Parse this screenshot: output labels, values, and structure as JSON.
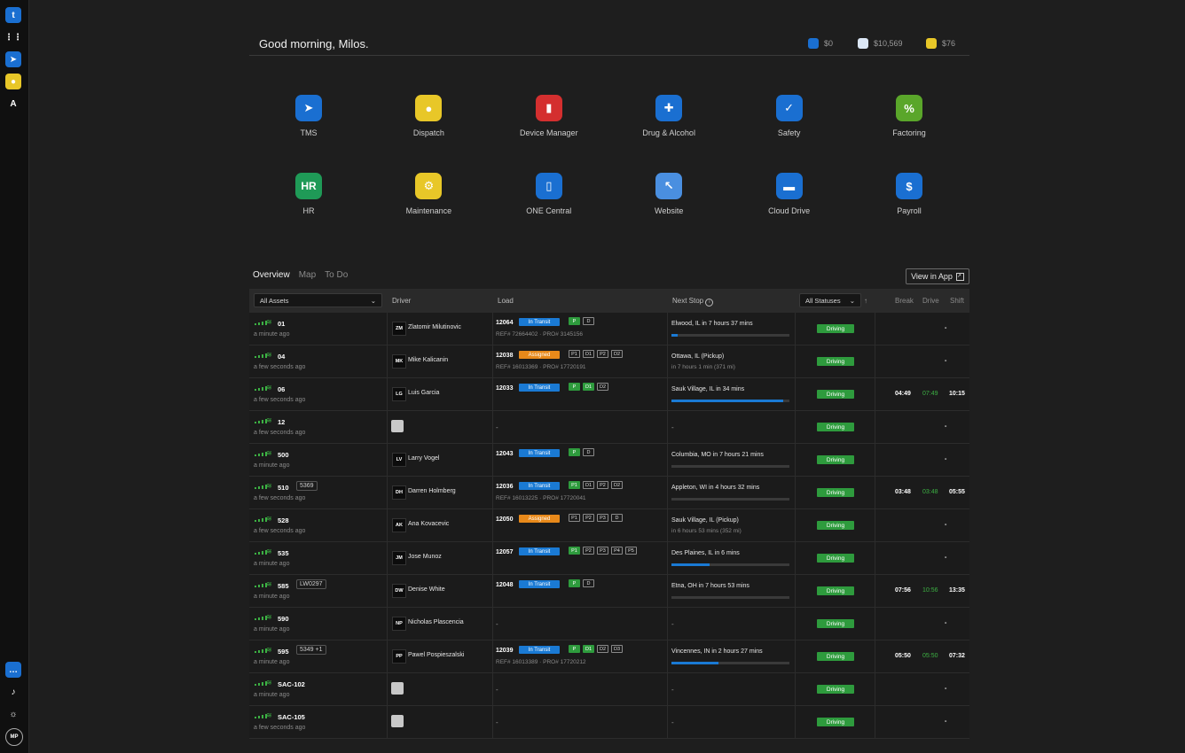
{
  "greeting": "Good morning, Milos.",
  "balances": [
    {
      "icon": "toll-icon",
      "value": "$0",
      "color": "#1a6fd1"
    },
    {
      "icon": "fuel-card-icon",
      "value": "$10,569",
      "color": "#dbe6f5"
    },
    {
      "icon": "wallet-icon",
      "value": "$76",
      "color": "#e8c728"
    }
  ],
  "apps": [
    {
      "label": "TMS",
      "icon": "paper-plane-icon",
      "color": "#1a6fd1",
      "glyph": "➤"
    },
    {
      "label": "Dispatch",
      "icon": "map-pin-icon",
      "color": "#e8c728",
      "glyph": "●"
    },
    {
      "label": "Device Manager",
      "icon": "signal-bars-icon",
      "color": "#d42f2f",
      "glyph": "▮"
    },
    {
      "label": "Drug & Alcohol",
      "icon": "pill-icon",
      "color": "#1a6fd1",
      "glyph": "✚"
    },
    {
      "label": "Safety",
      "icon": "shield-check-icon",
      "color": "#1a6fd1",
      "glyph": "✓"
    },
    {
      "label": "Factoring",
      "icon": "percent-icon",
      "color": "#5aa62a",
      "glyph": "%"
    },
    {
      "label": "HR",
      "icon": "hr-icon",
      "color": "#1f9a57",
      "glyph": "HR"
    },
    {
      "label": "Maintenance",
      "icon": "wrench-icon",
      "color": "#e8c728",
      "glyph": "⚙"
    },
    {
      "label": "ONE Central",
      "icon": "phone-icon",
      "color": "#1a6fd1",
      "glyph": "▯"
    },
    {
      "label": "Website",
      "icon": "browser-cursor-icon",
      "color": "#4a8fe0",
      "glyph": "↖"
    },
    {
      "label": "Cloud Drive",
      "icon": "folder-icon",
      "color": "#1a6fd1",
      "glyph": "▬"
    },
    {
      "label": "Payroll",
      "icon": "dollar-icon",
      "color": "#1a6fd1",
      "glyph": "$"
    }
  ],
  "tabs": [
    "Overview",
    "Map",
    "To Do"
  ],
  "view_in_app": "View in App",
  "table": {
    "assets_filter": "All Assets",
    "statuses_filter": "All Statuses",
    "headers": {
      "driver": "Driver",
      "load": "Load",
      "next_stop": "Next Stop",
      "break": "Break",
      "drive": "Drive",
      "shift": "Shift"
    },
    "rows": [
      {
        "asset": "01",
        "time": "a minute ago",
        "tag": "",
        "drv_init": "ZM",
        "driver": "Zlatomir Milutinovic",
        "load": "12064",
        "status": "In Transit",
        "stops": [
          [
            "P",
            1
          ],
          [
            "D",
            0
          ]
        ],
        "ref": "REF# 72664402 · PRO# 3145156",
        "next": "Elwood, IL in 7 hours 37 mins",
        "sub": "",
        "progress": 5,
        "state": "Driving",
        "brk": "",
        "drv": "",
        "shift": "-"
      },
      {
        "asset": "04",
        "time": "a few seconds ago",
        "tag": "",
        "drv_init": "MK",
        "driver": "Mike Kalicanin",
        "load": "12038",
        "status": "Assigned",
        "stops": [
          [
            "P1",
            0
          ],
          [
            "D1",
            0
          ],
          [
            "P2",
            0
          ],
          [
            "D2",
            0
          ]
        ],
        "ref": "REF# 16013369 · PRO# 17720191",
        "next": "Ottawa, IL (Pickup)",
        "sub": "in 7 hours 1 min (371 mi)",
        "progress": -1,
        "state": "Driving",
        "brk": "",
        "drv": "",
        "shift": "-"
      },
      {
        "asset": "06",
        "time": "a few seconds ago",
        "tag": "",
        "drv_init": "LG",
        "driver": "Luis Garcia",
        "load": "12033",
        "status": "In Transit",
        "stops": [
          [
            "P",
            1
          ],
          [
            "D1",
            1
          ],
          [
            "D2",
            0
          ]
        ],
        "ref": "",
        "next": "Sauk Village, IL in 34 mins",
        "sub": "",
        "progress": 95,
        "state": "Driving",
        "brk": "04:49",
        "drv": "07:49",
        "shift": "10:15"
      },
      {
        "asset": "12",
        "time": "a few seconds ago",
        "tag": "",
        "drv_init": "",
        "driver": "",
        "load": "",
        "status": "",
        "stops": [],
        "ref": "",
        "next": "",
        "sub": "",
        "progress": -1,
        "state": "Driving",
        "brk": "",
        "drv": "",
        "shift": "-"
      },
      {
        "asset": "500",
        "time": "a minute ago",
        "tag": "",
        "drv_init": "LV",
        "driver": "Larry Vogel",
        "load": "12043",
        "status": "In Transit",
        "stops": [
          [
            "P",
            1
          ],
          [
            "D",
            0
          ]
        ],
        "ref": "",
        "next": "Columbia, MO in 7 hours 21 mins",
        "sub": "",
        "progress": 0,
        "state": "Driving",
        "brk": "",
        "drv": "",
        "shift": "-"
      },
      {
        "asset": "510",
        "time": "a few seconds ago",
        "tag": "5369",
        "drv_init": "DH",
        "driver": "Darren Holmberg",
        "load": "12036",
        "status": "In Transit",
        "stops": [
          [
            "P1",
            1
          ],
          [
            "D1",
            0
          ],
          [
            "P2",
            0
          ],
          [
            "D2",
            0
          ]
        ],
        "ref": "REF# 16013225 · PRO# 17720041",
        "next": "Appleton, WI in 4 hours 32 mins",
        "sub": "",
        "progress": 0,
        "state": "Driving",
        "brk": "03:48",
        "drv": "03:48",
        "shift": "05:55"
      },
      {
        "asset": "528",
        "time": "a few seconds ago",
        "tag": "",
        "drv_init": "AK",
        "driver": "Ana Kovacevic",
        "load": "12050",
        "status": "Assigned",
        "stops": [
          [
            "P1",
            0
          ],
          [
            "P2",
            0
          ],
          [
            "P3",
            0
          ],
          [
            "D",
            0
          ]
        ],
        "ref": "",
        "next": "Sauk Village, IL (Pickup)",
        "sub": "in 6 hours 53 mins (352 mi)",
        "progress": -1,
        "state": "Driving",
        "brk": "",
        "drv": "",
        "shift": "-"
      },
      {
        "asset": "535",
        "time": "a minute ago",
        "tag": "",
        "drv_init": "JM",
        "driver": "Jose Munoz",
        "load": "12057",
        "status": "In Transit",
        "stops": [
          [
            "P1",
            1
          ],
          [
            "P2",
            0
          ],
          [
            "P3",
            0
          ],
          [
            "P4",
            0
          ],
          [
            "P5",
            0
          ]
        ],
        "ref": "",
        "next": "Des Plaines, IL in 6 mins",
        "sub": "",
        "progress": 32,
        "state": "Driving",
        "brk": "",
        "drv": "",
        "shift": "-"
      },
      {
        "asset": "585",
        "time": "a minute ago",
        "tag": "LW0297",
        "drv_init": "DW",
        "driver": "Denise White",
        "load": "12048",
        "status": "In Transit",
        "stops": [
          [
            "P",
            1
          ],
          [
            "D",
            0
          ]
        ],
        "ref": "",
        "next": "Etna, OH in 7 hours 53 mins",
        "sub": "",
        "progress": 0,
        "state": "Driving",
        "brk": "07:56",
        "drv": "10:56",
        "shift": "13:35"
      },
      {
        "asset": "590",
        "time": "a minute ago",
        "tag": "",
        "drv_init": "NP",
        "driver": "Nicholas Plascencia",
        "load": "",
        "status": "",
        "stops": [],
        "ref": "",
        "next": "",
        "sub": "",
        "progress": -1,
        "state": "Driving",
        "brk": "",
        "drv": "",
        "shift": "-"
      },
      {
        "asset": "595",
        "time": "a minute ago",
        "tag": "5349 +1",
        "drv_init": "PP",
        "driver": "Pawel Pospieszalski",
        "load": "12039",
        "status": "In Transit",
        "stops": [
          [
            "P",
            1
          ],
          [
            "D1",
            1
          ],
          [
            "D2",
            0
          ],
          [
            "D3",
            0
          ]
        ],
        "ref": "REF# 16013389 · PRO# 17720212",
        "next": "Vincennes, IN in 2 hours 27 mins",
        "sub": "",
        "progress": 40,
        "state": "Driving",
        "brk": "05:50",
        "drv": "05:50",
        "shift": "07:32"
      },
      {
        "asset": "SAC-102",
        "time": "a minute ago",
        "tag": "",
        "drv_init": "",
        "driver": "",
        "load": "",
        "status": "",
        "stops": [],
        "ref": "",
        "next": "",
        "sub": "",
        "progress": -1,
        "state": "Driving",
        "brk": "",
        "drv": "",
        "shift": "-"
      },
      {
        "asset": "SAC-105",
        "time": "a few seconds ago",
        "tag": "",
        "drv_init": "",
        "driver": "",
        "load": "",
        "status": "",
        "stops": [],
        "ref": "",
        "next": "",
        "sub": "",
        "progress": -1,
        "state": "Driving",
        "brk": "",
        "drv": "",
        "shift": "-"
      }
    ]
  },
  "rail": [
    {
      "icon": "brand-logo-icon",
      "glyph": "t",
      "color": "#1a6fd1"
    },
    {
      "icon": "apps-grid-icon",
      "glyph": "⋮⋮",
      "color": "transparent"
    },
    {
      "icon": "tms-icon",
      "glyph": "➤",
      "color": "#1a6fd1"
    },
    {
      "icon": "dispatch-icon",
      "glyph": "●",
      "color": "#e8c728"
    },
    {
      "icon": "a-logo-icon",
      "glyph": "A",
      "color": "transparent"
    }
  ],
  "rail_bottom": [
    {
      "icon": "chat-icon",
      "glyph": "…",
      "color": "#1a6fd1"
    },
    {
      "icon": "bell-icon",
      "glyph": "♪",
      "color": "transparent"
    },
    {
      "icon": "sun-icon",
      "glyph": "☼",
      "color": "transparent"
    },
    {
      "icon": "avatar-icon",
      "glyph": "MP",
      "color": "transparent"
    }
  ]
}
